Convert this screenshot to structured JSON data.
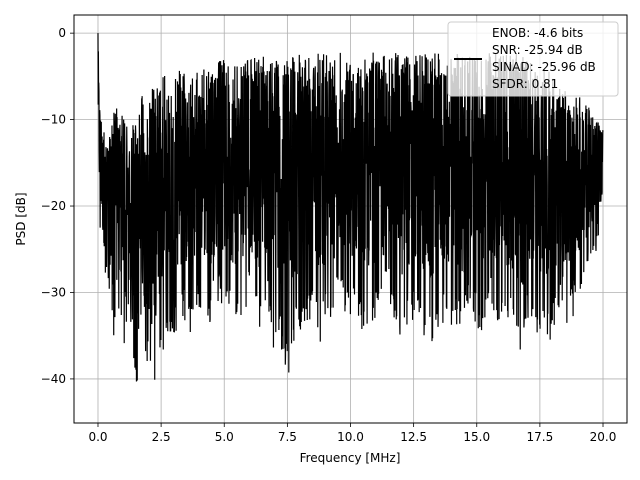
{
  "chart_data": {
    "type": "line",
    "title": "",
    "xlabel": "Frequency [MHz]",
    "ylabel": "PSD [dB]",
    "xlim": [
      -0.95,
      20.95
    ],
    "ylim": [
      -45.1,
      2.1
    ],
    "xticks": [
      0.0,
      2.5,
      5.0,
      7.5,
      10.0,
      12.5,
      15.0,
      17.5,
      20.0
    ],
    "xtick_labels": [
      "0.0",
      "2.5",
      "5.0",
      "7.5",
      "10.0",
      "12.5",
      "15.0",
      "17.5",
      "20.0"
    ],
    "yticks": [
      0,
      -10,
      -20,
      -30,
      -40
    ],
    "ytick_labels": [
      "0",
      "−10",
      "−20",
      "−30",
      "−40"
    ],
    "grid": true,
    "legend_position": "upper-right",
    "legend": {
      "lines": [
        "ENOB: -4.6 bits",
        "SNR: -25.94 dB",
        "SINAD: -25.96 dB",
        "SFDR: 0.81"
      ]
    },
    "series": [
      {
        "color": "#000000",
        "envelope_x": [
          0.0,
          0.02,
          0.05,
          0.1,
          0.15,
          0.2,
          0.3,
          0.4,
          0.5,
          0.6,
          0.7,
          0.8,
          0.9,
          1.0,
          1.1,
          1.2,
          1.3,
          1.4,
          1.5,
          1.6,
          1.7,
          1.8,
          1.9,
          2.0,
          2.1,
          2.2,
          2.3,
          2.4,
          2.5,
          2.6,
          2.7,
          2.8,
          2.9,
          3.0,
          3.2,
          3.4,
          3.6,
          3.8,
          4.0,
          4.2,
          4.4,
          4.6,
          4.8,
          5.0,
          5.2,
          5.4,
          5.6,
          5.8,
          6.0,
          6.2,
          6.4,
          6.6,
          6.8,
          7.0,
          7.2,
          7.4,
          7.6,
          7.8,
          8.0,
          8.2,
          8.4,
          8.6,
          8.8,
          9.0,
          9.2,
          9.4,
          9.6,
          9.8,
          10.0,
          10.2,
          10.4,
          10.6,
          10.8,
          11.0,
          11.2,
          11.4,
          11.6,
          11.8,
          12.0,
          12.2,
          12.4,
          12.6,
          12.8,
          13.0,
          13.2,
          13.4,
          13.6,
          13.8,
          14.0,
          14.2,
          14.4,
          14.6,
          14.8,
          15.0,
          15.2,
          15.4,
          15.6,
          15.8,
          16.0,
          16.2,
          16.4,
          16.6,
          16.8,
          17.0,
          17.2,
          17.4,
          17.6,
          17.8,
          18.0,
          18.2,
          18.4,
          18.6,
          18.8,
          19.0,
          19.2,
          19.4,
          19.6,
          19.8,
          20.0
        ],
        "envelope_max": [
          0.0,
          -2.0,
          -5.0,
          -9.0,
          -9.5,
          -10.5,
          -12.0,
          -11.5,
          -10.5,
          -9.0,
          -8.5,
          -8.0,
          -8.8,
          -9.5,
          -11.0,
          -9.0,
          -9.8,
          -10.5,
          -9.0,
          -8.0,
          -7.5,
          -7.0,
          -6.8,
          -6.5,
          -6.2,
          -5.8,
          -5.5,
          -5.2,
          -5.0,
          -4.8,
          -5.0,
          -5.5,
          -5.2,
          -4.5,
          -4.2,
          -4.5,
          -4.0,
          -4.2,
          -4.8,
          -3.8,
          -3.5,
          -4.2,
          -3.2,
          -3.0,
          -3.5,
          -3.2,
          -3.0,
          -3.2,
          -2.8,
          -2.5,
          -2.8,
          -2.2,
          -2.5,
          -2.6,
          -2.3,
          -2.5,
          -2.4,
          -2.6,
          -2.2,
          -2.4,
          -2.6,
          -2.3,
          -2.0,
          -2.2,
          -2.3,
          -2.5,
          -2.0,
          -2.2,
          -2.0,
          -2.4,
          -2.2,
          -2.5,
          -2.1,
          -2.0,
          -2.3,
          -2.2,
          -2.6,
          -2.1,
          -2.0,
          -2.2,
          -2.5,
          -1.9,
          -2.3,
          -2.0,
          -2.2,
          -2.4,
          -2.0,
          -2.1,
          -2.3,
          -2.2,
          -2.4,
          -2.0,
          -2.3,
          -2.1,
          -2.5,
          -2.2,
          -2.0,
          -2.4,
          -2.3,
          -2.1,
          -2.5,
          -2.2,
          -2.6,
          -2.4,
          -2.8,
          -3.0,
          -3.5,
          -4.2,
          -5.0,
          -5.5,
          -6.0,
          -5.8,
          -6.5,
          -7.0,
          -7.8,
          -8.5,
          -9.0,
          -10.0,
          -11.0
        ],
        "envelope_min": [
          -13.0,
          -20.0,
          -23.0,
          -25.0,
          -27.0,
          -29.0,
          -30.0,
          -29.0,
          -33.0,
          -35.0,
          -37.0,
          -33.0,
          -35.0,
          -36.0,
          -39.0,
          -32.0,
          -34.0,
          -38.0,
          -40.0,
          -42.0,
          -43.0,
          -40.0,
          -38.0,
          -39.0,
          -41.0,
          -42.5,
          -40.0,
          -39.0,
          -38.0,
          -37.0,
          -36.0,
          -35.0,
          -36.0,
          -35.0,
          -34.0,
          -33.0,
          -35.0,
          -34.0,
          -32.0,
          -33.0,
          -34.0,
          -32.0,
          -31.0,
          -33.0,
          -32.0,
          -34.0,
          -33.0,
          -32.0,
          -31.0,
          -33.0,
          -34.0,
          -32.0,
          -33.0,
          -38.0,
          -36.0,
          -39.0,
          -40.0,
          -35.0,
          -36.0,
          -33.0,
          -34.0,
          -32.0,
          -36.0,
          -33.0,
          -35.0,
          -32.0,
          -31.0,
          -34.0,
          -33.0,
          -32.0,
          -35.0,
          -36.0,
          -34.0,
          -33.0,
          -32.0,
          -35.0,
          -34.0,
          -33.0,
          -36.0,
          -35.0,
          -34.0,
          -33.0,
          -34.0,
          -36.0,
          -37.0,
          -35.0,
          -34.0,
          -33.0,
          -35.0,
          -34.0,
          -36.0,
          -33.0,
          -32.0,
          -34.0,
          -35.0,
          -33.0,
          -32.0,
          -34.0,
          -33.0,
          -35.0,
          -34.0,
          -36.0,
          -37.0,
          -34.0,
          -33.0,
          -35.0,
          -34.0,
          -36.0,
          -35.0,
          -33.0,
          -32.0,
          -34.0,
          -33.0,
          -31.0,
          -30.0,
          -29.0,
          -27.0,
          -25.0,
          -22.0
        ]
      }
    ]
  }
}
